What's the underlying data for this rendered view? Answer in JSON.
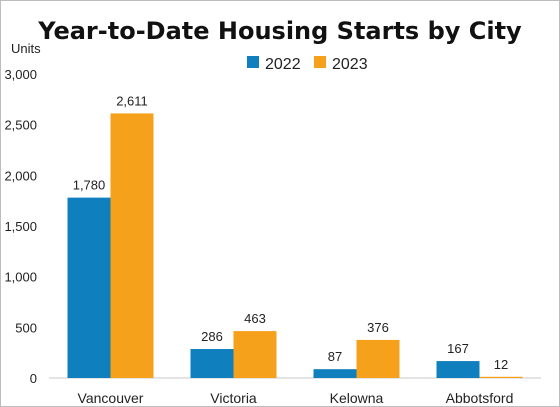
{
  "chart_data": {
    "type": "bar",
    "title": "Year-to-Date Housing Starts by City",
    "ylabel": "Units",
    "xlabel": "",
    "categories": [
      "Vancouver",
      "Victoria",
      "Kelowna",
      "Abbotsford"
    ],
    "series": [
      {
        "name": "2022",
        "color": "#0f7fbd",
        "values": [
          1780,
          286,
          87,
          167
        ],
        "labels": [
          "1,780",
          "286",
          "87",
          "167"
        ]
      },
      {
        "name": "2023",
        "color": "#f5a11c",
        "values": [
          2611,
          463,
          376,
          12
        ],
        "labels": [
          "2,611",
          "463",
          "376",
          "12"
        ]
      }
    ],
    "ylim": [
      0,
      3000
    ],
    "yticks": [
      0,
      500,
      1000,
      1500,
      2000,
      2500,
      3000
    ],
    "ytick_labels": [
      "0",
      "500",
      "1,000",
      "1,500",
      "2,000",
      "2,500",
      "3,000"
    ],
    "grid": false,
    "legend_position": "top-center"
  }
}
